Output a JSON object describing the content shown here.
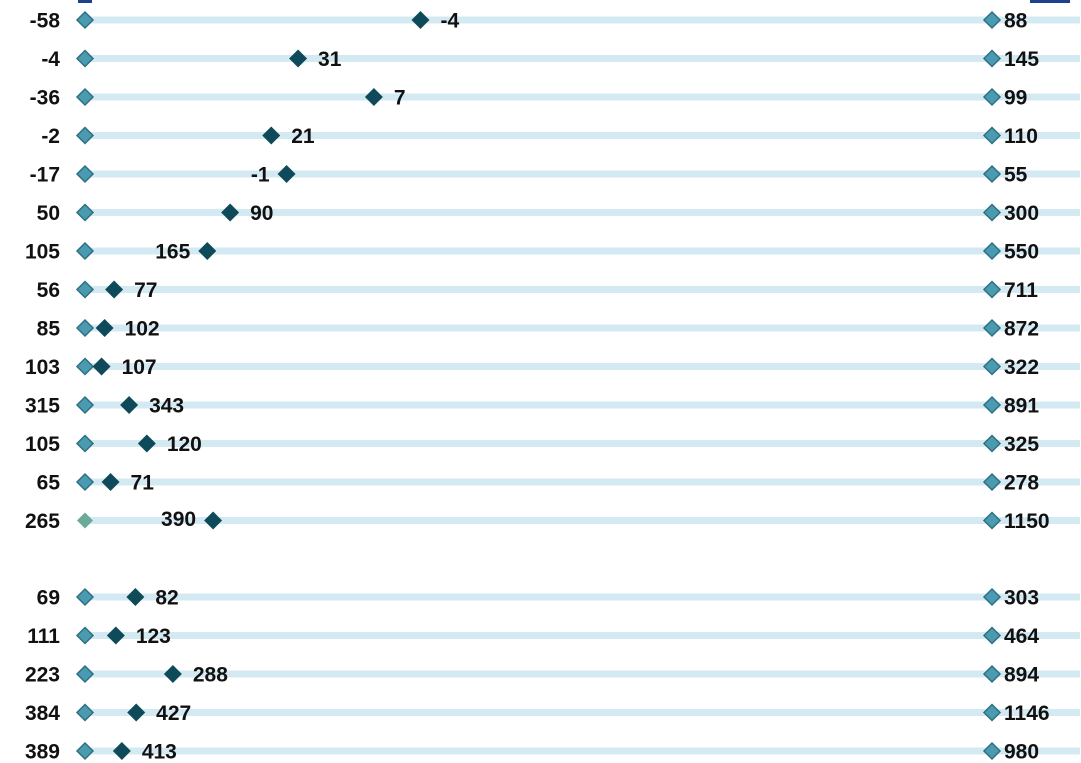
{
  "chart_data": {
    "type": "dot-range",
    "colors": {
      "track": "#d4eaf3",
      "end_marker": "#4a9bb0",
      "end_marker_stroke": "#2e6f86",
      "start_marker_highlight": "#6aaa98",
      "value_marker": "#0f4a5a",
      "header_text": "#1f3f8f"
    },
    "groups": [
      {
        "rows": [
          {
            "start": -58,
            "value": -4,
            "end": 88
          },
          {
            "start": -4,
            "value": 31,
            "end": 145
          },
          {
            "start": -36,
            "value": 7,
            "end": 99
          },
          {
            "start": -2,
            "value": 21,
            "end": 110
          },
          {
            "start": -17,
            "value": -1,
            "end": 55,
            "value_label_side": "left"
          },
          {
            "start": 50,
            "value": 90,
            "end": 300
          },
          {
            "start": 105,
            "value": 165,
            "end": 550,
            "value_label_side": "left"
          },
          {
            "start": 56,
            "value": 77,
            "end": 711
          },
          {
            "start": 85,
            "value": 102,
            "end": 872
          },
          {
            "start": 103,
            "value": 107,
            "end": 322
          },
          {
            "start": 315,
            "value": 343,
            "end": 891
          },
          {
            "start": 105,
            "value": 120,
            "end": 325
          },
          {
            "start": 65,
            "value": 71,
            "end": 278
          },
          {
            "start": 265,
            "value": 390,
            "end": 1150,
            "value_label_side": "left",
            "start_highlight": true
          }
        ]
      },
      {
        "rows": [
          {
            "start": 69,
            "value": 82,
            "end": 303
          },
          {
            "start": 111,
            "value": 123,
            "end": 464
          },
          {
            "start": 223,
            "value": 288,
            "end": 894
          },
          {
            "start": 384,
            "value": 427,
            "end": 1146
          },
          {
            "start": 389,
            "value": 413,
            "end": 980
          }
        ]
      }
    ]
  }
}
